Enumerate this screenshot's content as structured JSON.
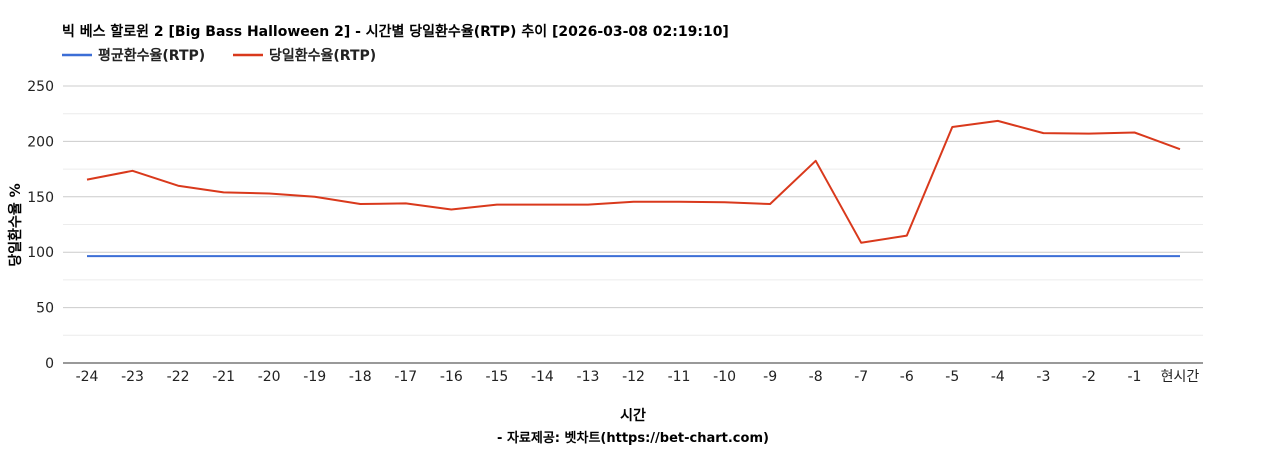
{
  "chart_data": {
    "type": "line",
    "title": "빅 베스 할로윈 2 [Big Bass Halloween 2] - 시간별 당일환수율(RTP) 추이 [2026-03-08 02:19:10]",
    "categories": [
      "-24",
      "-23",
      "-22",
      "-21",
      "-20",
      "-19",
      "-18",
      "-17",
      "-16",
      "-15",
      "-14",
      "-13",
      "-12",
      "-11",
      "-10",
      "-9",
      "-8",
      "-7",
      "-6",
      "-5",
      "-4",
      "-3",
      "-2",
      "-1",
      "현시간"
    ],
    "series": [
      {
        "name": "평균환수율(RTP)",
        "color": "#3c6ed6",
        "values": [
          96.5,
          96.5,
          96.5,
          96.5,
          96.5,
          96.5,
          96.5,
          96.5,
          96.5,
          96.5,
          96.5,
          96.5,
          96.5,
          96.5,
          96.5,
          96.5,
          96.5,
          96.5,
          96.5,
          96.5,
          96.5,
          96.5,
          96.5,
          96.5,
          96.5
        ]
      },
      {
        "name": "당일환수율(RTP)",
        "color": "#d9391c",
        "values": [
          165.5,
          173.5,
          160,
          154,
          153,
          150,
          143.5,
          144,
          138.5,
          143,
          143,
          143,
          145.5,
          145.5,
          145,
          143.5,
          182.5,
          108.5,
          115,
          213,
          218.5,
          207.5,
          207,
          208,
          193
        ]
      }
    ],
    "xlabel": "시간",
    "ylabel": "당일환수율 %",
    "ylim": [
      0,
      250
    ],
    "yticks": [
      0,
      50,
      100,
      150,
      200,
      250
    ],
    "grid": true,
    "legend_position": "top-left"
  },
  "source": "- 자료제공: 벳차트(https://bet-chart.com)"
}
